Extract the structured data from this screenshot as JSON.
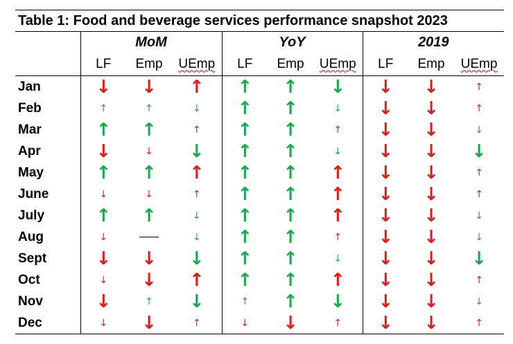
{
  "title": "Table 1: Food and beverage services performance snapshot 2023",
  "groups": [
    "MoM",
    "YoY",
    "2019"
  ],
  "sub_headers": [
    "LF",
    "Emp",
    "UEmp",
    "LF",
    "Emp",
    "UEmp",
    "LF",
    "Emp",
    "UEmp"
  ],
  "colors": {
    "up": "#1aa84f",
    "down": "#e01b1b",
    "uemp_up": "#e01b1b",
    "uemp_down": "#1aa84f"
  },
  "legend_icons": {
    "big_up": "↑",
    "big_down": "↓",
    "small_up": "↑",
    "small_down": "↓",
    "no_change": "—"
  },
  "rows": [
    {
      "month": "Jan",
      "cells": [
        "down-big",
        "down-big",
        "up-big",
        "up-big",
        "up-big",
        "down-big",
        "down-big",
        "down-big",
        "up-small"
      ]
    },
    {
      "month": "Feb",
      "cells": [
        "up-small",
        "up-small",
        "down-small",
        "up-big",
        "up-big",
        "down-small",
        "down-big",
        "down-big",
        "up-small"
      ]
    },
    {
      "month": "Mar",
      "cells": [
        "up-big",
        "up-big",
        "up-small",
        "up-big",
        "up-big",
        "up-small",
        "down-big",
        "down-big",
        "down-small"
      ]
    },
    {
      "month": "Apr",
      "cells": [
        "down-big",
        "down-small",
        "down-big",
        "up-big",
        "up-big",
        "down-small",
        "down-big",
        "down-big",
        "down-big"
      ]
    },
    {
      "month": "May",
      "cells": [
        "up-big",
        "up-big",
        "up-big",
        "up-big",
        "up-big",
        "up-big",
        "down-big",
        "down-big",
        "up-small"
      ]
    },
    {
      "month": "June",
      "cells": [
        "down-small",
        "down-small",
        "up-small",
        "up-big",
        "up-big",
        "up-big",
        "down-big",
        "down-big",
        "up-small"
      ]
    },
    {
      "month": "July",
      "cells": [
        "up-big",
        "up-big",
        "down-small",
        "up-big",
        "up-big",
        "up-big",
        "down-big",
        "down-big",
        "down-small"
      ]
    },
    {
      "month": "Aug",
      "cells": [
        "down-small",
        "none",
        "down-small",
        "up-big",
        "up-big",
        "up-small",
        "down-big",
        "down-big",
        "down-small"
      ]
    },
    {
      "month": "Sept",
      "cells": [
        "down-big",
        "down-big",
        "down-big",
        "up-big",
        "up-big",
        "down-small",
        "down-big",
        "down-big",
        "down-big"
      ]
    },
    {
      "month": "Oct",
      "cells": [
        "down-small",
        "down-big",
        "up-big",
        "up-big",
        "up-big",
        "up-big",
        "down-big",
        "down-big",
        "up-small"
      ]
    },
    {
      "month": "Nov",
      "cells": [
        "down-big",
        "up-small",
        "down-big",
        "up-small",
        "up-big",
        "down-big",
        "down-big",
        "down-big",
        "down-small"
      ]
    },
    {
      "month": "Dec",
      "cells": [
        "down-small",
        "down-big",
        "up-small",
        "down-small",
        "down-big",
        "up-small",
        "down-big",
        "down-big",
        "up-small"
      ]
    }
  ]
}
